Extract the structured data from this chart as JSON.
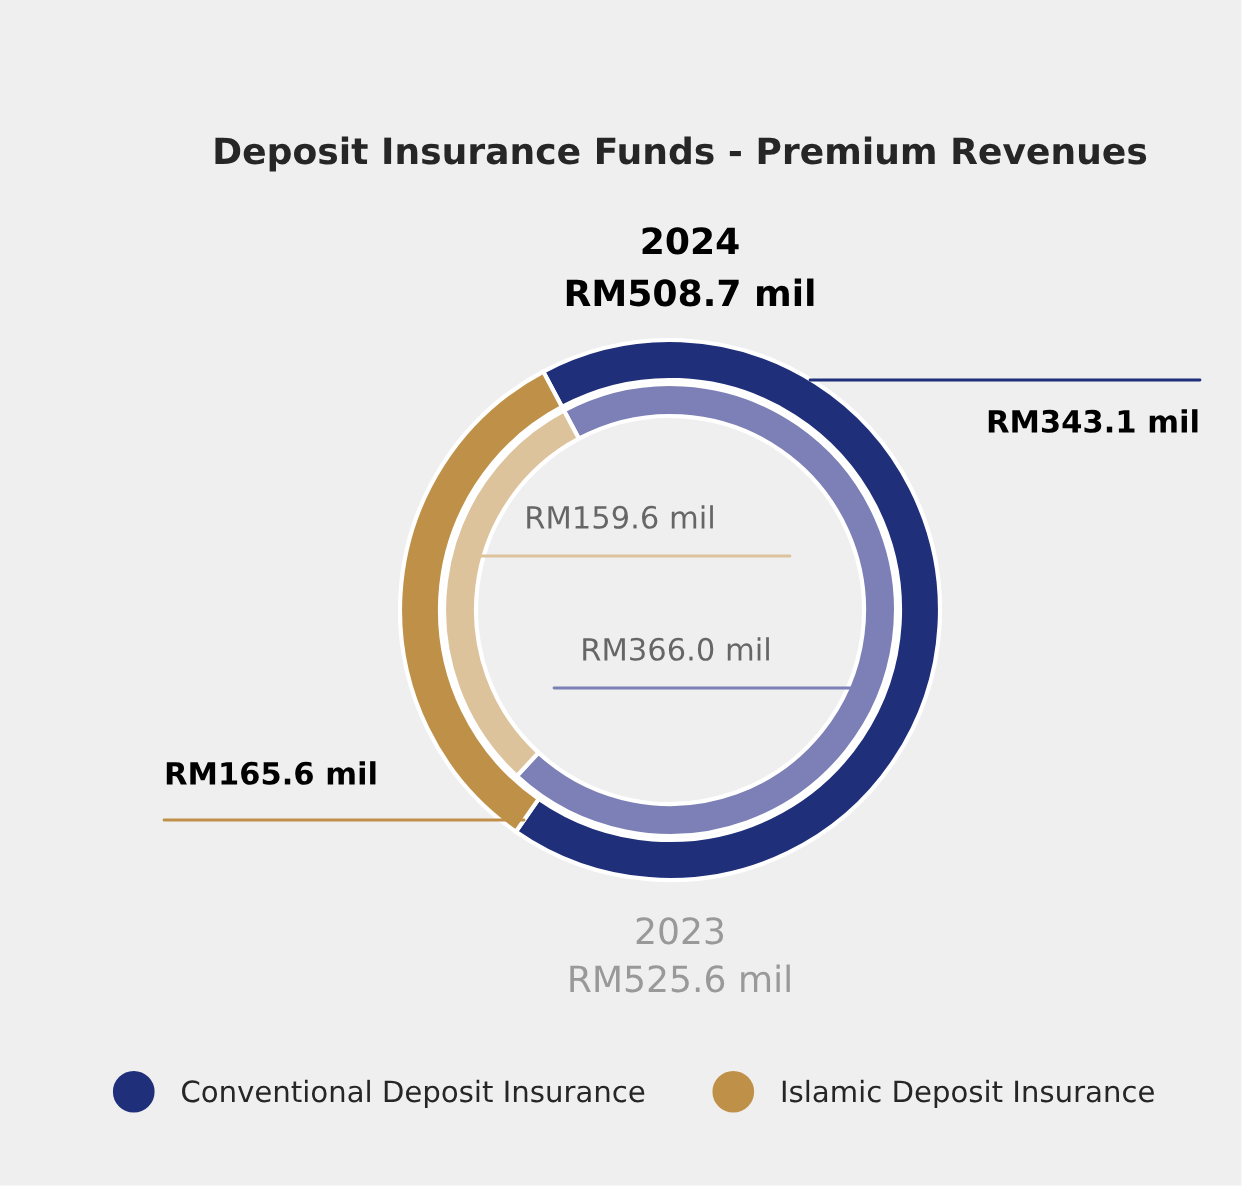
{
  "chart_data": {
    "type": "donut",
    "title": "Deposit Insurance Funds - Premium Revenues",
    "categories": [
      "Conventional Deposit Insurance",
      "Islamic Deposit Insurance"
    ],
    "legend": "bottom",
    "series": [
      {
        "values": [
          343.1,
          165.6
        ],
        "colors": [
          "#1f2f7a",
          "#bf9148"
        ],
        "value_labels": [
          "RM343.1 mil",
          "RM165.6 mil"
        ]
      },
      {
        "values": [
          366.0,
          159.6
        ],
        "colors": [
          "#7c80b6",
          "#dcc39c"
        ],
        "value_labels": [
          "RM366.0 mil",
          "RM159.6 mil"
        ]
      }
    ],
    "annotations": [
      "2024",
      "RM508.7 mil",
      "2023",
      "RM525.6 mil"
    ]
  }
}
